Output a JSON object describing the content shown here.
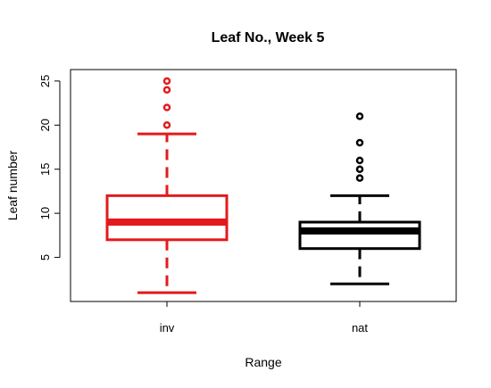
{
  "chart_data": {
    "type": "boxplot",
    "title": "Leaf No., Week 5",
    "xlabel": "Range",
    "ylabel": "Leaf number",
    "categories": [
      "inv",
      "nat"
    ],
    "yticks": [
      "5",
      "10",
      "15",
      "20",
      "25"
    ],
    "ylim": [
      0,
      26.3
    ],
    "grid": false,
    "boxes": [
      {
        "category": "inv",
        "color": "#e31a1c",
        "min": 1,
        "q1": 7,
        "median": 9,
        "q3": 12,
        "max": 19,
        "outliers": [
          20,
          22,
          24,
          25
        ]
      },
      {
        "category": "nat",
        "color": "#000000",
        "min": 2,
        "q1": 6,
        "median": 8,
        "q3": 9,
        "max": 12,
        "outliers": [
          14,
          15,
          16,
          18,
          21
        ]
      }
    ]
  }
}
